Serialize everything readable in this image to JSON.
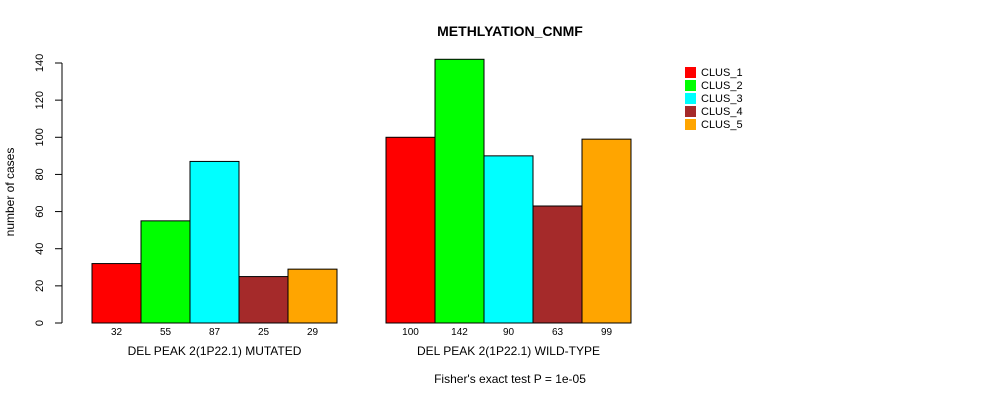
{
  "chart_data": {
    "type": "bar",
    "title": "METHLYATION_CNMF",
    "ylabel": "number of cases",
    "xlabel": "Fisher's exact test P = 1e-05",
    "ylim": [
      0,
      140
    ],
    "yticks": [
      0,
      20,
      40,
      60,
      80,
      100,
      120,
      140
    ],
    "groups": [
      "DEL PEAK  2(1P22.1) MUTATED",
      "DEL PEAK  2(1P22.1) WILD-TYPE"
    ],
    "series": [
      {
        "name": "CLUS_1",
        "color": "#ff0000",
        "values": [
          32,
          100
        ]
      },
      {
        "name": "CLUS_2",
        "color": "#00ff00",
        "values": [
          55,
          142
        ]
      },
      {
        "name": "CLUS_3",
        "color": "#00ffff",
        "values": [
          87,
          90
        ]
      },
      {
        "name": "CLUS_4",
        "color": "#a52a2a",
        "values": [
          25,
          63
        ]
      },
      {
        "name": "CLUS_5",
        "color": "#ffa500",
        "values": [
          29,
          99
        ]
      }
    ],
    "bar_labels": [
      [
        "32",
        "55",
        "87",
        "25",
        "29"
      ],
      [
        "100",
        "142",
        "90",
        "63",
        "99"
      ]
    ],
    "legend_position": "top-right"
  }
}
